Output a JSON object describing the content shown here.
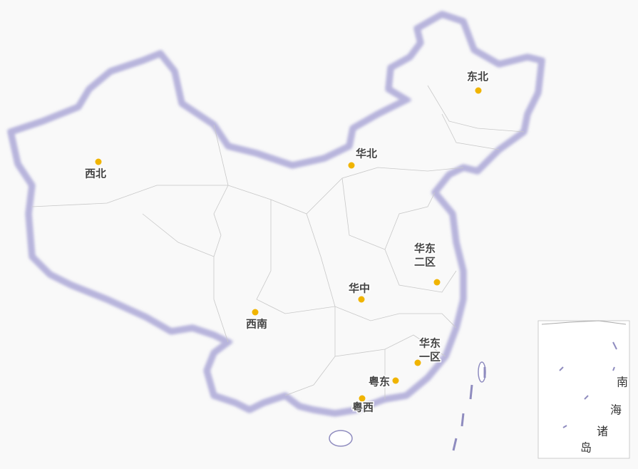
{
  "map": {
    "regions": [
      {
        "label": [
          "东北"
        ]
      },
      {
        "label": [
          "华北"
        ]
      },
      {
        "label": [
          "西北"
        ]
      },
      {
        "label": [
          "华东",
          "二区"
        ]
      },
      {
        "label": [
          "华中"
        ]
      },
      {
        "label": [
          "西南"
        ]
      },
      {
        "label": [
          "华东",
          "一区"
        ]
      },
      {
        "label": [
          "粤东"
        ]
      },
      {
        "label": [
          "粤西"
        ]
      }
    ]
  },
  "inset": {
    "label": [
      "南",
      "海",
      "诸",
      "岛"
    ]
  }
}
